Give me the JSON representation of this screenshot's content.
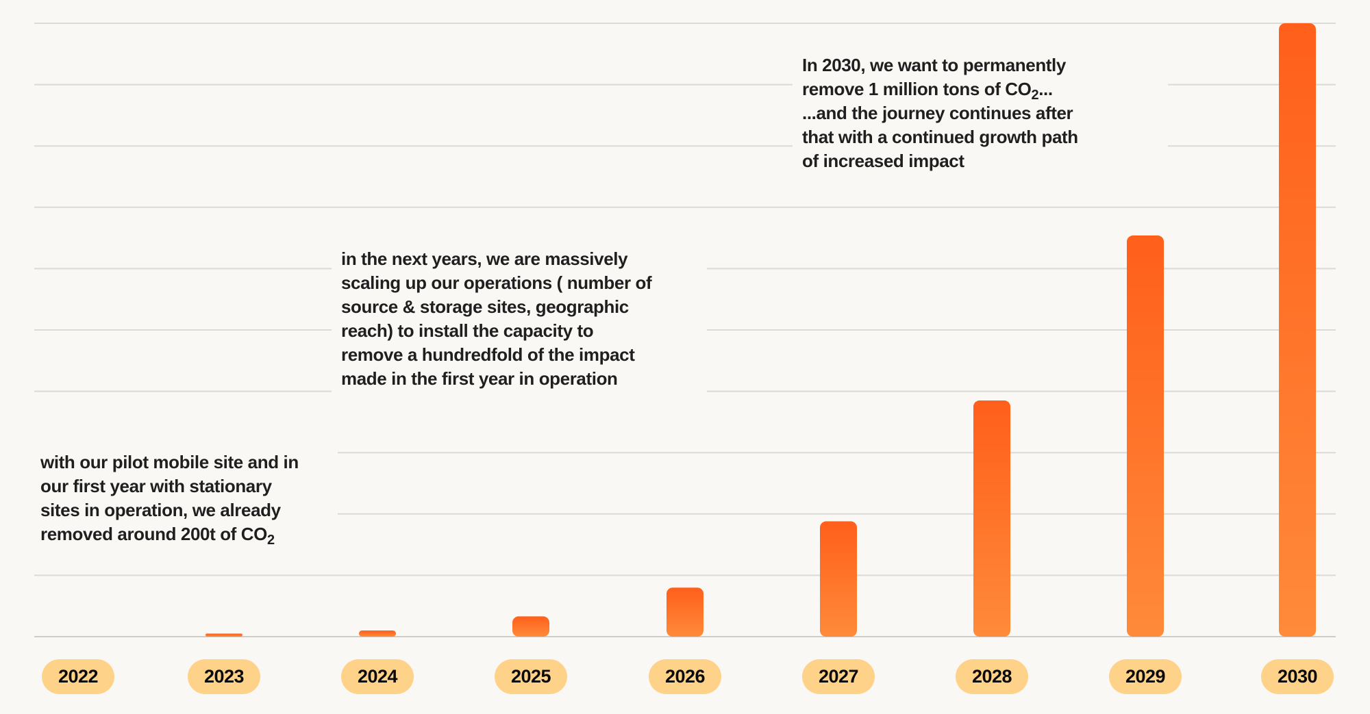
{
  "chart_data": {
    "type": "bar",
    "categories": [
      "2022",
      "2023",
      "2024",
      "2025",
      "2026",
      "2027",
      "2028",
      "2029",
      "2030"
    ],
    "values": [
      0,
      0.05,
      0.1,
      0.33,
      0.8,
      1.88,
      3.85,
      6.54,
      10
    ],
    "ylim": [
      0,
      10
    ],
    "y_axis_labels": "none",
    "grid": true,
    "bar_color_top": "#ff5f1a",
    "bar_color_bottom": "#ff8a3a",
    "label_pill_color": "#ffd28a",
    "annotations": [
      {
        "lines": [
          [
            {
              "t": "with our pilot mobile site and in"
            }
          ],
          [
            {
              "t": "our first year with stationary"
            }
          ],
          [
            {
              "t": "sites in operation, we already"
            }
          ],
          [
            {
              "t": "removed around 200t of CO"
            },
            {
              "sub": "2"
            }
          ]
        ]
      },
      {
        "lines": [
          [
            {
              "t": "in the next years, we are massively"
            }
          ],
          [
            {
              "t": "scaling up our operations ( number of"
            }
          ],
          [
            {
              "t": "source & storage sites, geographic"
            }
          ],
          [
            {
              "t": "reach) to install the capacity to"
            }
          ],
          [
            {
              "t": "remove a hundredfold of the impact"
            }
          ],
          [
            {
              "t": "made in the first year in operation"
            }
          ]
        ]
      },
      {
        "lines": [
          [
            {
              "t": "In 2030, we want to permanently"
            }
          ],
          [
            {
              "t": "remove 1 million tons of CO"
            },
            {
              "sub": "2"
            },
            {
              "t": "..."
            }
          ],
          [
            {
              "t": "...and the journey continues  after"
            }
          ],
          [
            {
              "t": "that with a continued growth path"
            }
          ],
          [
            {
              "t": "of increased impact"
            }
          ]
        ]
      }
    ]
  }
}
